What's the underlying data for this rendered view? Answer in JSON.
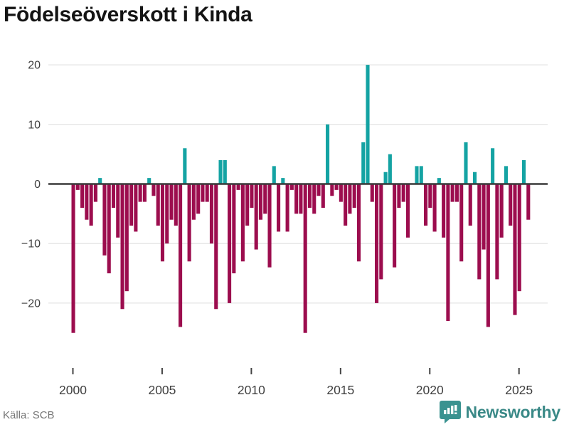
{
  "title": "Födelseöverskott i Kinda",
  "source": "Källa: SCB",
  "brand": {
    "name": "Newsworthy"
  },
  "colors": {
    "positive": "#14a3a3",
    "negative": "#9c0d4e",
    "grid": "#e4e4e4",
    "zero_line": "#3a3a3a",
    "axis_text": "#404040",
    "tick_mark": "#444444",
    "title_text": "#141414",
    "source_text": "#767676",
    "brand_teal": "#3a8987"
  },
  "chart_data": {
    "type": "bar",
    "title": "Födelseöverskott i Kinda",
    "xlabel": "",
    "ylabel": "",
    "ylim": [
      -27,
      22
    ],
    "grid": "horizontal",
    "legend": "none",
    "frequency": "quarterly",
    "start_year": 2000,
    "start_quarter": 1,
    "end_year": 2025,
    "end_quarter": 3,
    "x_tick_labels": [
      "2000",
      "2005",
      "2010",
      "2015",
      "2020",
      "2025"
    ],
    "y_ticks": [
      20,
      10,
      0,
      -10,
      -20
    ],
    "series": [
      {
        "name": "Födelseöverskott",
        "values": [
          -25,
          -1,
          -4,
          -6,
          -7,
          -3,
          1,
          -12,
          -15,
          -4,
          -9,
          -21,
          -18,
          -7,
          -8,
          -3,
          -3,
          1,
          -2,
          -7,
          -13,
          -10,
          -6,
          -7,
          -24,
          6,
          -13,
          -6,
          -5,
          -3,
          -3,
          -10,
          -21,
          4,
          4,
          -20,
          -15,
          -1,
          -13,
          -7,
          -4,
          -11,
          -6,
          -5,
          -14,
          3,
          -8,
          1,
          -8,
          -1,
          -5,
          -5,
          -25,
          -4,
          -5,
          -2,
          -4,
          10,
          -2,
          -1,
          -3,
          -7,
          -5,
          -4,
          -13,
          7,
          20,
          -3,
          -20,
          -16,
          2,
          5,
          -14,
          -4,
          -3,
          -9,
          0,
          3,
          3,
          -7,
          -4,
          -8,
          1,
          -9,
          -23,
          -3,
          -3,
          -13,
          7,
          -7,
          2,
          -16,
          -11,
          -24,
          6,
          -16,
          -9,
          3,
          -7,
          -22,
          -18,
          4,
          -6
        ]
      }
    ]
  }
}
